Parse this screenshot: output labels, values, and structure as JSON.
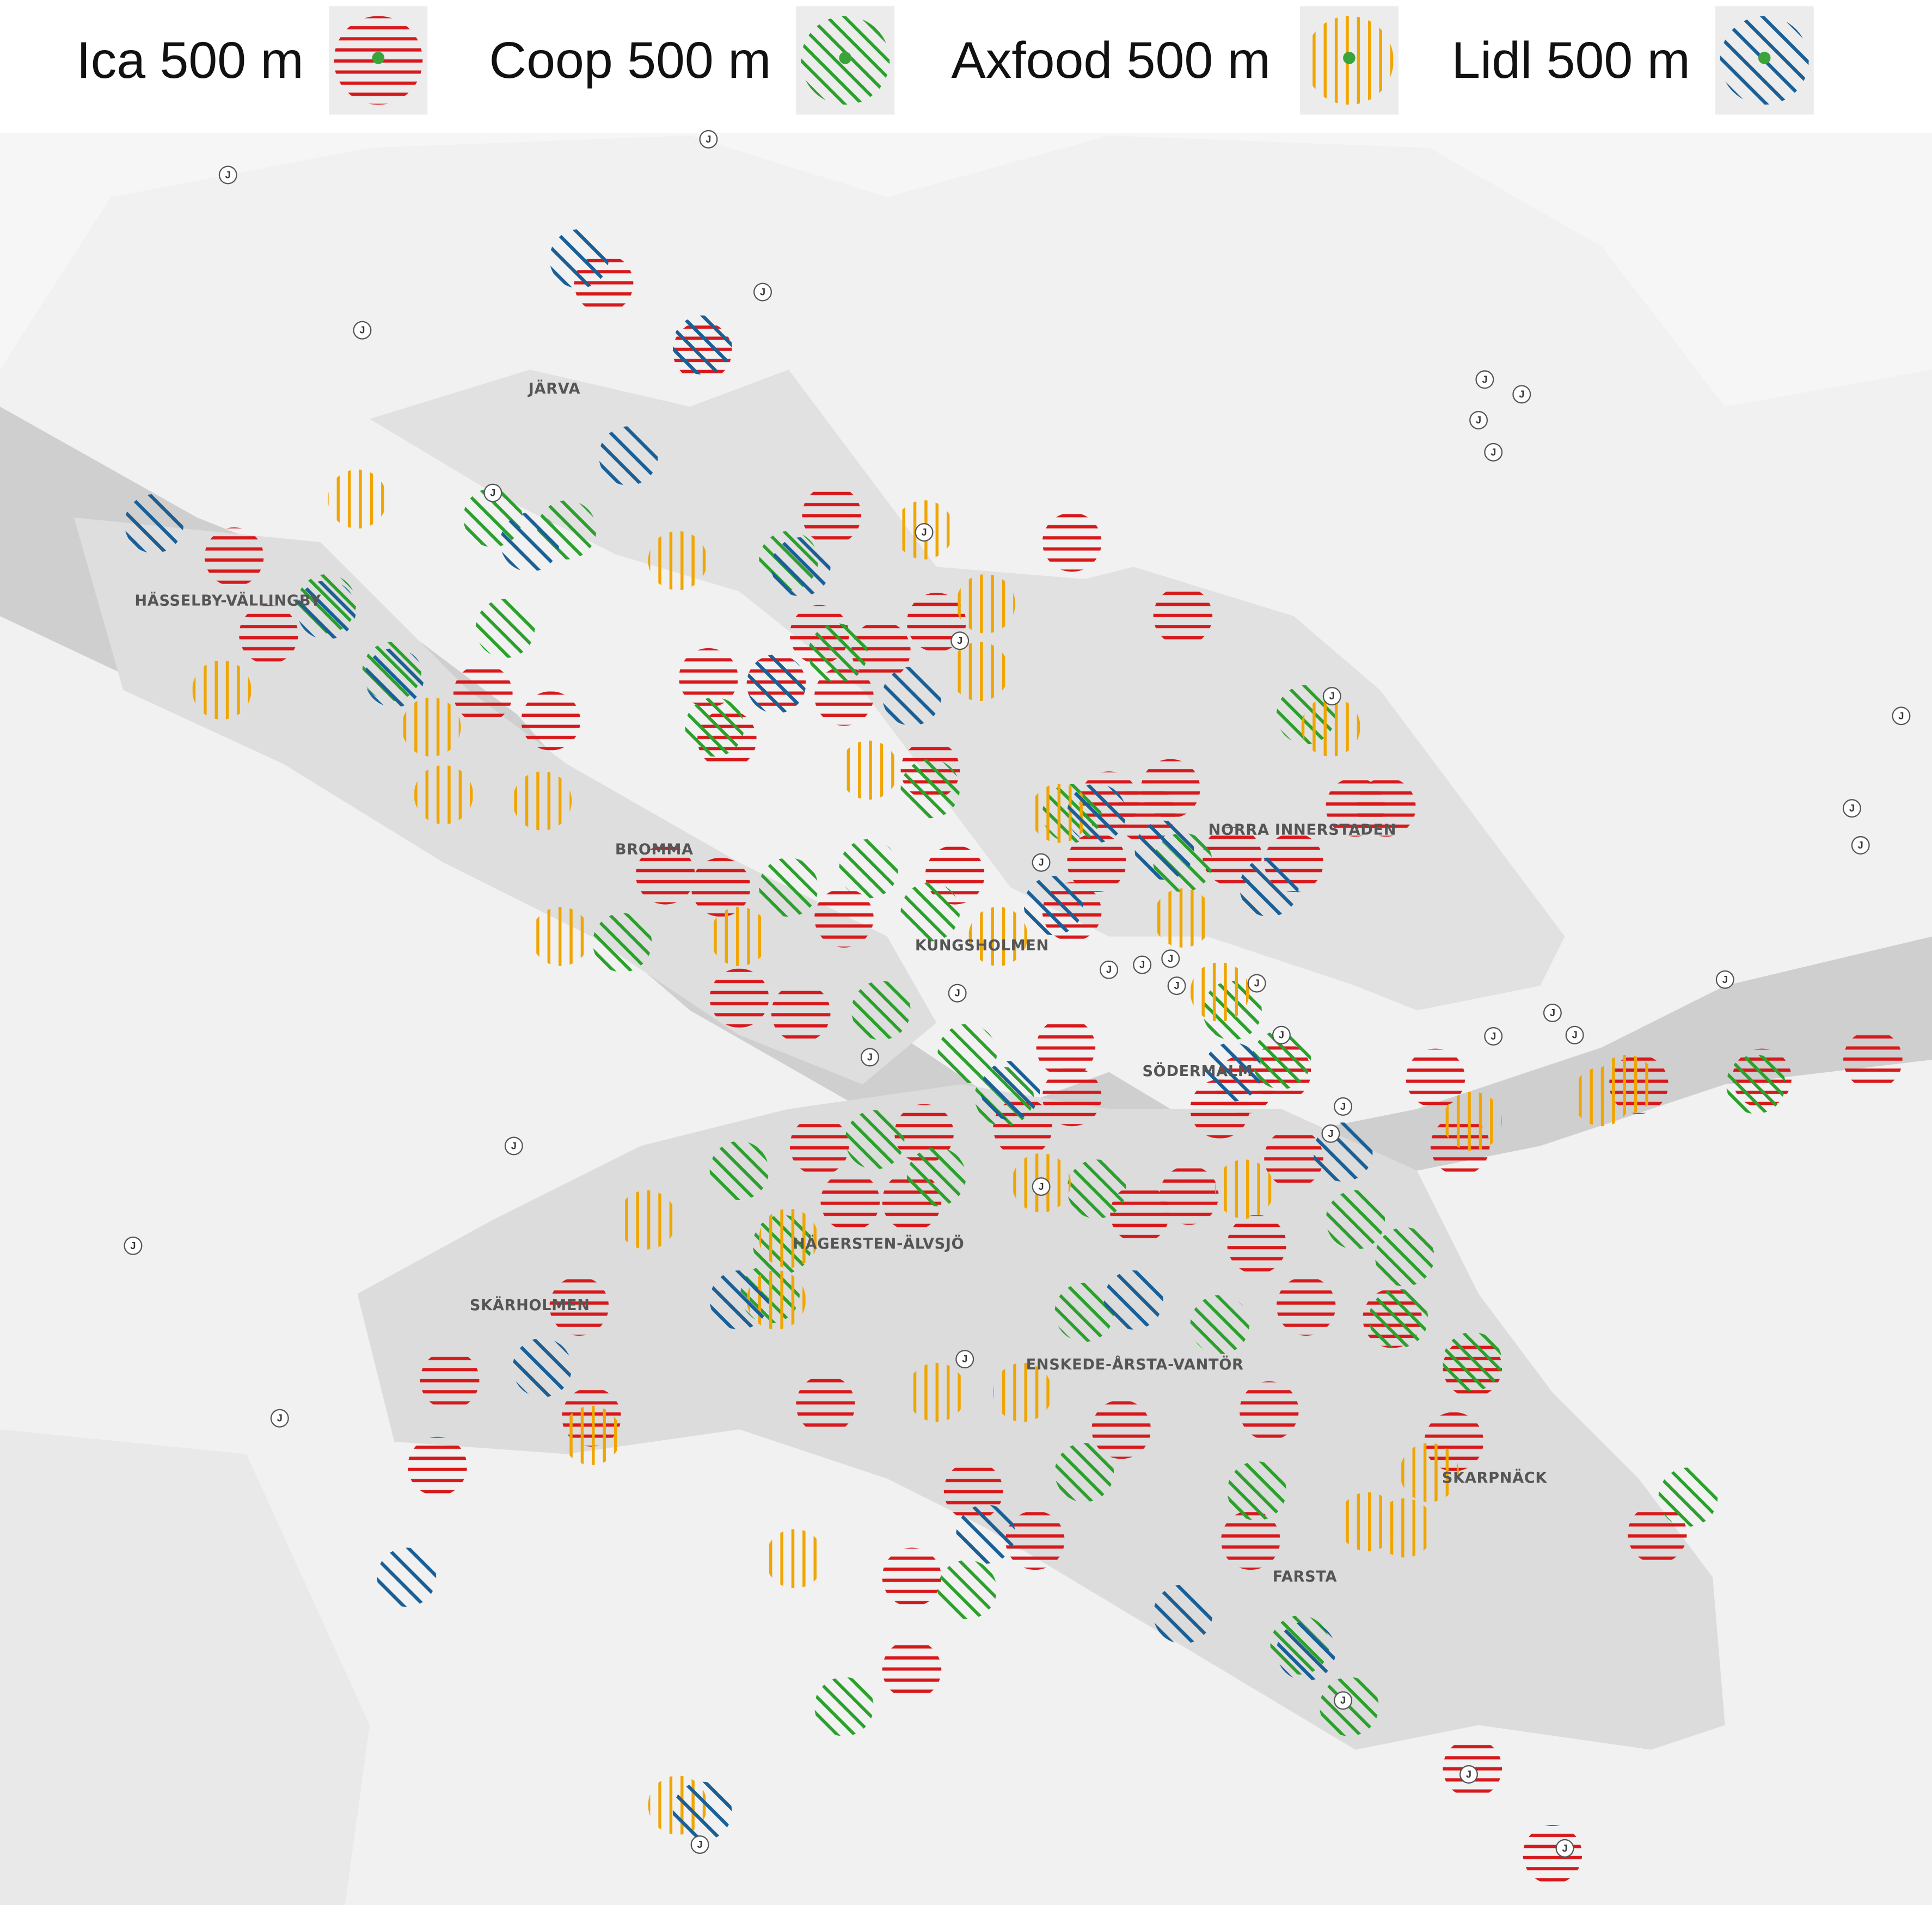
{
  "legend": {
    "items": [
      "Ica 500 m",
      "Coop 500 m",
      "Axfood 500 m",
      "Lidl 500 m"
    ]
  },
  "map": {
    "districts": [
      "JÄRVA",
      "HÄSSELBY-VÄLLINGBY",
      "BROMMA",
      "KUNGSHOLMEN",
      "NORRA INNERSTADEN",
      "SÖDERMALM",
      "HÄGERSTEN-ÄLVSJÖ",
      "SKÄRHOLMEN",
      "ENSKEDE-ÅRSTA-VANTÖR",
      "SKARPNÄCK",
      "FARSTA"
    ],
    "station_label": "J"
  }
}
